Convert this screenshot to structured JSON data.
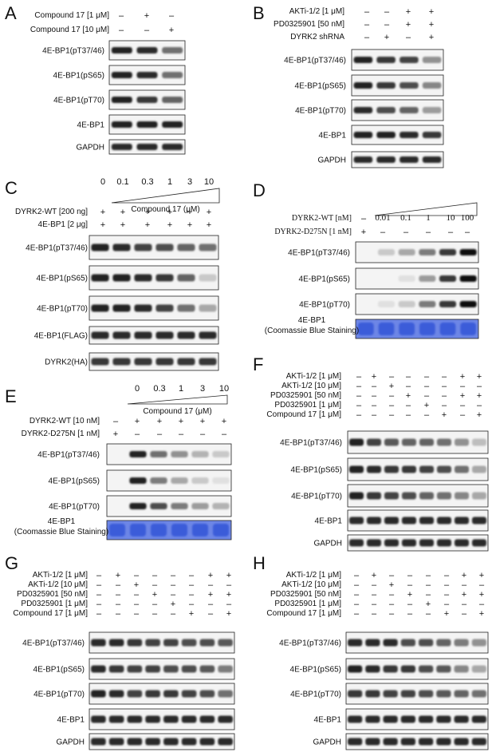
{
  "panels": [
    {
      "letter": "A",
      "letter_pos": "top-left",
      "conditions": [
        {
          "label": "Compound 17 [1 μM]",
          "signs": [
            "–",
            "+",
            "–"
          ]
        },
        {
          "label": "Compound 17 [10 μM]",
          "signs": [
            "–",
            "–",
            "+"
          ]
        }
      ],
      "blots": [
        {
          "label": "4E-BP1(pT37/46)",
          "intensities": [
            0.9,
            0.85,
            0.55
          ]
        },
        {
          "label": "4E-BP1(pS65)",
          "intensities": [
            0.9,
            0.85,
            0.55
          ]
        },
        {
          "label": "4E-BP1(pT70)",
          "intensities": [
            0.9,
            0.8,
            0.6
          ]
        },
        {
          "label": "4E-BP1",
          "intensities": [
            0.9,
            0.9,
            0.9
          ]
        },
        {
          "label": "GAPDH",
          "intensities": [
            0.85,
            0.85,
            0.85
          ]
        }
      ]
    },
    {
      "letter": "B",
      "conditions": [
        {
          "label": "AKTi-1/2 [1 μM]",
          "signs": [
            "–",
            "–",
            "+",
            "+"
          ]
        },
        {
          "label": "PD0325901 [50 nM]",
          "signs": [
            "–",
            "–",
            "+",
            "+"
          ]
        },
        {
          "label": "DYRK2 shRNA",
          "signs": [
            "–",
            "+",
            "–",
            "+"
          ]
        }
      ],
      "blots": [
        {
          "label": "4E-BP1(pT37/46)",
          "intensities": [
            0.9,
            0.8,
            0.75,
            0.4
          ]
        },
        {
          "label": "4E-BP1(pS65)",
          "intensities": [
            0.9,
            0.8,
            0.7,
            0.45
          ]
        },
        {
          "label": "4E-BP1(pT70)",
          "intensities": [
            0.85,
            0.7,
            0.6,
            0.35
          ]
        },
        {
          "label": "4E-BP1",
          "intensities": [
            0.9,
            0.9,
            0.85,
            0.8
          ]
        },
        {
          "label": "GAPDH",
          "intensities": [
            0.85,
            0.85,
            0.85,
            0.85
          ]
        }
      ]
    },
    {
      "letter": "C",
      "dose_values": [
        "0",
        "0.1",
        "0.3",
        "1",
        "3",
        "10"
      ],
      "dose_label": "Compound 17 (μM)",
      "conditions": [
        {
          "label": "DYRK2-WT [200 ng]",
          "signs": [
            "+",
            "+",
            "+",
            "+",
            "+",
            "+"
          ]
        },
        {
          "label": "4E-BP1 [2 μg]",
          "signs": [
            "+",
            "+",
            "+",
            "+",
            "+",
            "+"
          ]
        }
      ],
      "blots": [
        {
          "label": "4E-BP1(pT37/46)",
          "intensities": [
            0.9,
            0.85,
            0.75,
            0.7,
            0.6,
            0.55
          ]
        },
        {
          "label": "4E-BP1(pS65)",
          "intensities": [
            0.9,
            0.9,
            0.85,
            0.8,
            0.6,
            0.15
          ]
        },
        {
          "label": "4E-BP1(pT70)",
          "intensities": [
            0.9,
            0.9,
            0.85,
            0.75,
            0.55,
            0.3
          ]
        },
        {
          "label": "4E-BP1(FLAG)",
          "intensities": [
            0.85,
            0.85,
            0.85,
            0.85,
            0.85,
            0.85
          ]
        },
        {
          "label": "DYRK2(HA)",
          "intensities": [
            0.8,
            0.8,
            0.8,
            0.8,
            0.8,
            0.8
          ]
        }
      ]
    },
    {
      "letter": "D",
      "dose_values": [
        "0.01",
        "0.1",
        "1",
        "10",
        "100"
      ],
      "conditions": [
        {
          "label": "DYRK2-WT [nM]",
          "signs": [
            "–"
          ]
        },
        {
          "label": "DYRK2-D275N [1 nM]",
          "signs": [
            "+",
            "–",
            "–",
            "–",
            "–",
            "–"
          ]
        }
      ],
      "blots": [
        {
          "label": "4E-BP1(pT37/46)",
          "intensities": [
            0,
            0.15,
            0.3,
            0.5,
            0.8,
            1.0
          ]
        },
        {
          "label": "4E-BP1(pS65)",
          "intensities": [
            0,
            0,
            0.05,
            0.35,
            0.8,
            1.0
          ]
        },
        {
          "label": "4E-BP1(pT70)",
          "intensities": [
            0,
            0.05,
            0.15,
            0.5,
            0.8,
            1.0
          ]
        }
      ],
      "stain": {
        "label_line1": "4E-BP1",
        "label_line2": "(Coomassie Blue Staining)",
        "color": "#3a5bd9"
      }
    },
    {
      "letter": "E",
      "dose_values": [
        "0",
        "0.3",
        "1",
        "3",
        "10"
      ],
      "dose_label": "Compound 17 (μM)",
      "conditions": [
        {
          "label": "DYRK2-WT [10 nM]",
          "signs": [
            "–",
            "+",
            "+",
            "+",
            "+",
            "+"
          ]
        },
        {
          "label": "DYRK2-D275N [1 nM]",
          "signs": [
            "+",
            "–",
            "–",
            "–",
            "–",
            "–"
          ]
        }
      ],
      "blots": [
        {
          "label": "4E-BP1(pT37/46)",
          "intensities": [
            0,
            0.9,
            0.55,
            0.4,
            0.25,
            0.15
          ]
        },
        {
          "label": "4E-BP1(pS65)",
          "intensities": [
            0,
            0.9,
            0.5,
            0.3,
            0.15,
            0.05
          ]
        },
        {
          "label": "4E-BP1(pT70)",
          "intensities": [
            0,
            0.9,
            0.7,
            0.5,
            0.35,
            0.25
          ]
        }
      ],
      "stain": {
        "label_line1": "4E-BP1",
        "label_line2": "(Coomassie Blue Staining)",
        "color": "#3a5bd9"
      }
    },
    {
      "letter": "F",
      "conditions": [
        {
          "label": "AKTi-1/2 [1 μM]",
          "signs": [
            "–",
            "+",
            "–",
            "–",
            "–",
            "–",
            "+",
            "+"
          ]
        },
        {
          "label": "AKTi-1/2 [10 μM]",
          "signs": [
            "–",
            "–",
            "+",
            "–",
            "–",
            "–",
            "–",
            "–"
          ]
        },
        {
          "label": "PD0325901 [50 nM]",
          "signs": [
            "–",
            "–",
            "–",
            "+",
            "–",
            "–",
            "+",
            "+"
          ]
        },
        {
          "label": "PD0325901 [1 μM]",
          "signs": [
            "–",
            "–",
            "–",
            "–",
            "+",
            "–",
            "–",
            "–"
          ]
        },
        {
          "label": "Compound 17 [1 μM]",
          "signs": [
            "–",
            "–",
            "–",
            "–",
            "–",
            "+",
            "–",
            "+"
          ]
        }
      ],
      "blots": [
        {
          "label": "4E-BP1(pT37/46)",
          "intensities": [
            0.9,
            0.75,
            0.65,
            0.6,
            0.6,
            0.55,
            0.4,
            0.2
          ]
        },
        {
          "label": "4E-BP1(pS65)",
          "intensities": [
            0.9,
            0.85,
            0.8,
            0.8,
            0.75,
            0.7,
            0.55,
            0.3
          ]
        },
        {
          "label": "4E-BP1(pT70)",
          "intensities": [
            0.9,
            0.8,
            0.75,
            0.7,
            0.6,
            0.55,
            0.45,
            0.3
          ]
        },
        {
          "label": "4E-BP1",
          "intensities": [
            0.85,
            0.85,
            0.85,
            0.85,
            0.85,
            0.85,
            0.85,
            0.85
          ]
        },
        {
          "label": "GAPDH",
          "intensities": [
            0.85,
            0.85,
            0.85,
            0.85,
            0.85,
            0.85,
            0.85,
            0.85
          ]
        }
      ]
    },
    {
      "letter": "G",
      "conditions": [
        {
          "label": "AKTi-1/2 [1 μM]",
          "signs": [
            "–",
            "+",
            "–",
            "–",
            "–",
            "–",
            "+",
            "+"
          ]
        },
        {
          "label": "AKTi-1/2 [10 μM]",
          "signs": [
            "–",
            "–",
            "+",
            "–",
            "–",
            "–",
            "–",
            "–"
          ]
        },
        {
          "label": "PD0325901 [50 nM]",
          "signs": [
            "–",
            "–",
            "–",
            "+",
            "–",
            "–",
            "+",
            "+"
          ]
        },
        {
          "label": "PD0325901 [1 μM]",
          "signs": [
            "–",
            "–",
            "–",
            "–",
            "+",
            "–",
            "–",
            "–"
          ]
        },
        {
          "label": "Compound 17 [1 μM]",
          "signs": [
            "–",
            "–",
            "–",
            "–",
            "–",
            "+",
            "–",
            "+"
          ]
        }
      ],
      "blots": [
        {
          "label": "4E-BP1(pT37/46)",
          "intensities": [
            0.85,
            0.85,
            0.8,
            0.75,
            0.75,
            0.7,
            0.7,
            0.65
          ]
        },
        {
          "label": "4E-BP1(pS65)",
          "intensities": [
            0.85,
            0.8,
            0.75,
            0.75,
            0.7,
            0.7,
            0.65,
            0.5
          ]
        },
        {
          "label": "4E-BP1(pT70)",
          "intensities": [
            0.9,
            0.85,
            0.75,
            0.8,
            0.8,
            0.75,
            0.7,
            0.55
          ]
        },
        {
          "label": "4E-BP1",
          "intensities": [
            0.85,
            0.85,
            0.85,
            0.85,
            0.85,
            0.85,
            0.85,
            0.85
          ]
        },
        {
          "label": "GAPDH",
          "intensities": [
            0.85,
            0.85,
            0.85,
            0.85,
            0.85,
            0.85,
            0.85,
            0.85
          ]
        }
      ]
    },
    {
      "letter": "H",
      "conditions": [
        {
          "label": "AKTi-1/2 [1 μM]",
          "signs": [
            "–",
            "+",
            "–",
            "–",
            "–",
            "–",
            "+",
            "+"
          ]
        },
        {
          "label": "AKTi-1/2 [10 μM]",
          "signs": [
            "–",
            "–",
            "+",
            "–",
            "–",
            "–",
            "–",
            "–"
          ]
        },
        {
          "label": "PD0325901 [50 nM]",
          "signs": [
            "–",
            "–",
            "–",
            "+",
            "–",
            "–",
            "+",
            "+"
          ]
        },
        {
          "label": "PD0325901 [1 μM]",
          "signs": [
            "–",
            "–",
            "–",
            "–",
            "+",
            "–",
            "–",
            "–"
          ]
        },
        {
          "label": "Compound 17 [1 μM]",
          "signs": [
            "–",
            "–",
            "–",
            "–",
            "–",
            "+",
            "–",
            "+"
          ]
        }
      ],
      "blots": [
        {
          "label": "4E-BP1(pT37/46)",
          "intensities": [
            0.85,
            0.85,
            0.85,
            0.7,
            0.7,
            0.6,
            0.5,
            0.4
          ]
        },
        {
          "label": "4E-BP1(pS65)",
          "intensities": [
            0.9,
            0.85,
            0.8,
            0.8,
            0.7,
            0.65,
            0.45,
            0.3
          ]
        },
        {
          "label": "4E-BP1(pT70)",
          "intensities": [
            0.8,
            0.8,
            0.75,
            0.75,
            0.7,
            0.65,
            0.6,
            0.55
          ]
        },
        {
          "label": "4E-BP1",
          "intensities": [
            0.85,
            0.85,
            0.85,
            0.85,
            0.85,
            0.85,
            0.85,
            0.85
          ]
        },
        {
          "label": "GAPDH",
          "intensities": [
            0.85,
            0.85,
            0.85,
            0.85,
            0.85,
            0.85,
            0.85,
            0.85
          ]
        }
      ]
    }
  ]
}
